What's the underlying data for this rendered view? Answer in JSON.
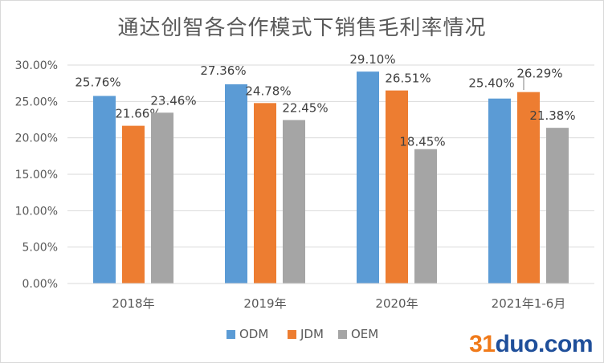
{
  "chart_data": {
    "type": "bar",
    "title": "通达创智各合作模式下销售毛利率情况",
    "categories": [
      "2018年",
      "2019年",
      "2020年",
      "2021年1-6月"
    ],
    "series": [
      {
        "name": "ODM",
        "color": "#5b9bd5",
        "values": [
          25.76,
          27.36,
          29.1,
          25.4
        ],
        "labels": [
          "25.76%",
          "27.36%",
          "29.10%",
          "25.40%"
        ]
      },
      {
        "name": "JDM",
        "color": "#ed7d31",
        "values": [
          21.66,
          24.78,
          26.51,
          26.29
        ],
        "labels": [
          "21.66%",
          "24.78%",
          "26.51%",
          "26.29%"
        ]
      },
      {
        "name": "OEM",
        "color": "#a5a5a5",
        "values": [
          23.46,
          22.45,
          18.45,
          21.38
        ],
        "labels": [
          "23.46%",
          "22.45%",
          "18.45%",
          "21.38%"
        ]
      }
    ],
    "ylim": [
      0,
      30
    ],
    "yticks": [
      0,
      5,
      10,
      15,
      20,
      25,
      30
    ],
    "ytick_labels": [
      "0.00%",
      "5.00%",
      "10.00%",
      "15.00%",
      "20.00%",
      "25.00%",
      "30.00%"
    ],
    "xlabel": "",
    "ylabel": "",
    "grid": true,
    "legend_position": "bottom"
  },
  "watermark": {
    "digits": "31",
    "name": "duo",
    "tld": ".com"
  }
}
